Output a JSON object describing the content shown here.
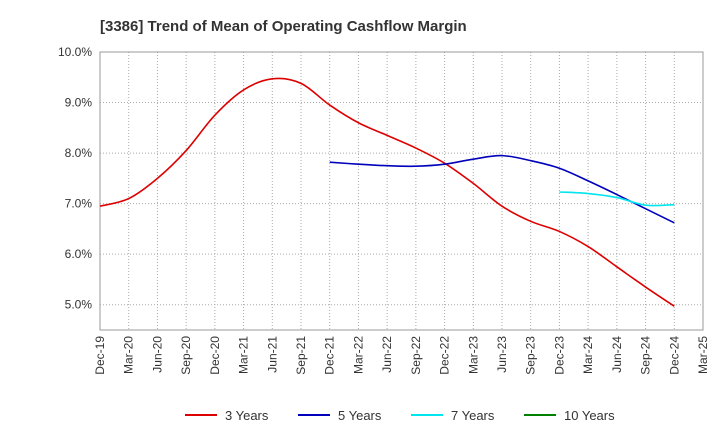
{
  "chart_data": {
    "type": "line",
    "title": "[3386]  Trend of Mean of Operating Cashflow Margin",
    "xlabel": "",
    "ylabel": "",
    "ylim": [
      4.5,
      10.0
    ],
    "yticks": [
      5.0,
      6.0,
      7.0,
      8.0,
      9.0,
      10.0
    ],
    "ytick_labels": [
      "5.0%",
      "6.0%",
      "7.0%",
      "8.0%",
      "9.0%",
      "10.0%"
    ],
    "x_tick_labels": [
      "Dec-19",
      "Mar-20",
      "Jun-20",
      "Sep-20",
      "Dec-20",
      "Mar-21",
      "Jun-21",
      "Sep-21",
      "Dec-21",
      "Mar-22",
      "Jun-22",
      "Sep-22",
      "Dec-22",
      "Mar-23",
      "Jun-23",
      "Sep-23",
      "Dec-23",
      "Mar-24",
      "Jun-24",
      "Sep-24",
      "Dec-24",
      "Mar-25"
    ],
    "grid": true,
    "legend_position": "bottom",
    "series": [
      {
        "name": "3 Years",
        "color": "#dd0000",
        "values": [
          6.95,
          7.1,
          7.5,
          8.05,
          8.75,
          9.25,
          9.47,
          9.38,
          8.95,
          8.6,
          8.35,
          8.1,
          7.8,
          7.4,
          6.95,
          6.65,
          6.45,
          6.15,
          5.75,
          5.35,
          4.97,
          null
        ]
      },
      {
        "name": "5 Years",
        "color": "#0000bb",
        "values": [
          null,
          null,
          null,
          null,
          null,
          null,
          null,
          null,
          7.82,
          7.78,
          7.75,
          7.74,
          7.78,
          7.88,
          7.95,
          7.85,
          7.7,
          7.45,
          7.18,
          6.9,
          6.62,
          null
        ]
      },
      {
        "name": "7 Years",
        "color": "#00e5ee",
        "values": [
          null,
          null,
          null,
          null,
          null,
          null,
          null,
          null,
          null,
          null,
          null,
          null,
          null,
          null,
          null,
          null,
          7.23,
          7.2,
          7.12,
          6.97,
          6.98,
          null
        ]
      },
      {
        "name": "10 Years",
        "color": "#008000",
        "values": [
          null,
          null,
          null,
          null,
          null,
          null,
          null,
          null,
          null,
          null,
          null,
          null,
          null,
          null,
          null,
          null,
          null,
          null,
          null,
          null,
          null,
          null
        ]
      }
    ]
  }
}
